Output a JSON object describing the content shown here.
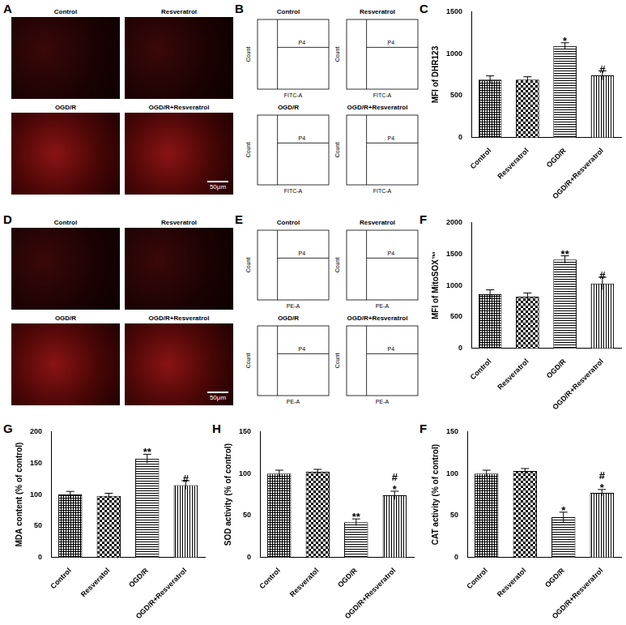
{
  "figure": {
    "image_panels": [
      {
        "letter": "A",
        "titles": [
          "Control",
          "Resveratrol",
          "OGD/R",
          "OGD/R+Resveratrol"
        ],
        "scale_bar": "50μm"
      },
      {
        "letter": "D",
        "titles": [
          "Control",
          "Resveratrol",
          "OGD/R",
          "OGD/R+Resveratrol"
        ],
        "scale_bar": "50μm"
      }
    ],
    "flow_panels": [
      {
        "letter": "B",
        "titles": [
          "Control",
          "Resveratrol",
          "OGD/R",
          "OGD/R+Resveratrol"
        ],
        "gate": "P4",
        "y_label": "Count",
        "x_label": "FITC-A"
      },
      {
        "letter": "E",
        "titles": [
          "Control",
          "Resveratrol",
          "OGD/R",
          "OGD/R+Resveratrol"
        ],
        "gate": "P4",
        "y_label": "Count",
        "x_label": "PE-A"
      }
    ]
  },
  "chart_data": [
    {
      "type": "bar",
      "panel": "C",
      "ylabel": "MFI of DHR123",
      "categories": [
        "Control",
        "Resveratrol",
        "OGD/R",
        "OGD/R+Resveratrol"
      ],
      "values": [
        690,
        690,
        1090,
        740
      ],
      "errors": [
        45,
        35,
        40,
        55
      ],
      "annotations": [
        {
          "category": "OGD/R",
          "text": [
            "*"
          ]
        },
        {
          "category": "OGD/R+Resveratrol",
          "text": [
            "#"
          ]
        }
      ],
      "color": "#000000",
      "ylim": [
        0,
        1500
      ],
      "yticks": [
        0,
        500,
        1000,
        1500
      ],
      "grid": false
    },
    {
      "type": "bar",
      "panel": "F",
      "ylabel": "MFI of MitoSOX™",
      "categories": [
        "Control",
        "Resveratrol",
        "OGD/R",
        "OGD/R+Resveratrol"
      ],
      "values": [
        860,
        820,
        1410,
        1030
      ],
      "errors": [
        70,
        60,
        60,
        100
      ],
      "annotations": [
        {
          "category": "OGD/R",
          "text": [
            "**"
          ]
        },
        {
          "category": "OGD/R+Resveratrol",
          "text": [
            "#"
          ]
        }
      ],
      "color": "#000000",
      "ylim": [
        0,
        2000
      ],
      "yticks": [
        0,
        500,
        1000,
        1500,
        2000
      ],
      "grid": false
    },
    {
      "type": "bar",
      "panel": "G",
      "ylabel": "MDA content (% of control)",
      "categories": [
        "Control",
        "Resveratol",
        "OGD/R",
        "OGD/R+Resveratrol"
      ],
      "values": [
        100,
        98,
        157,
        115
      ],
      "errors": [
        5,
        4,
        7,
        7
      ],
      "annotations": [
        {
          "category": "OGD/R",
          "text": [
            "**"
          ]
        },
        {
          "category": "OGD/R+Resveratrol",
          "text": [
            "#"
          ]
        }
      ],
      "color": "#000000",
      "ylim": [
        0,
        200
      ],
      "yticks": [
        0,
        50,
        100,
        150,
        200
      ],
      "grid": false
    },
    {
      "type": "bar",
      "panel": "H",
      "ylabel": "SOD activity (% of control)",
      "categories": [
        "Control",
        "Resveratol",
        "OGD/R",
        "OGD/R+Resveratrol"
      ],
      "values": [
        100,
        102,
        42,
        74
      ],
      "errors": [
        4,
        3,
        4,
        5
      ],
      "annotations": [
        {
          "category": "OGD/R",
          "text": [
            "**"
          ]
        },
        {
          "category": "OGD/R+Resveratrol",
          "text": [
            "#",
            "*"
          ]
        }
      ],
      "color": "#000000",
      "ylim": [
        0,
        150
      ],
      "yticks": [
        0,
        50,
        100,
        150
      ],
      "grid": false
    },
    {
      "type": "bar",
      "panel": "F",
      "ylabel": "CAT activity (% of control)",
      "categories": [
        "Control",
        "Resveratol",
        "OGD/R",
        "OGD/R+Resveratrol"
      ],
      "values": [
        100,
        103,
        48,
        77
      ],
      "errors": [
        4,
        3,
        6,
        4
      ],
      "annotations": [
        {
          "category": "OGD/R",
          "text": [
            "*"
          ]
        },
        {
          "category": "OGD/R+Resveratrol",
          "text": [
            "#",
            "*"
          ]
        }
      ],
      "color": "#000000",
      "ylim": [
        0,
        150
      ],
      "yticks": [
        0,
        50,
        100,
        150
      ],
      "grid": false
    }
  ]
}
